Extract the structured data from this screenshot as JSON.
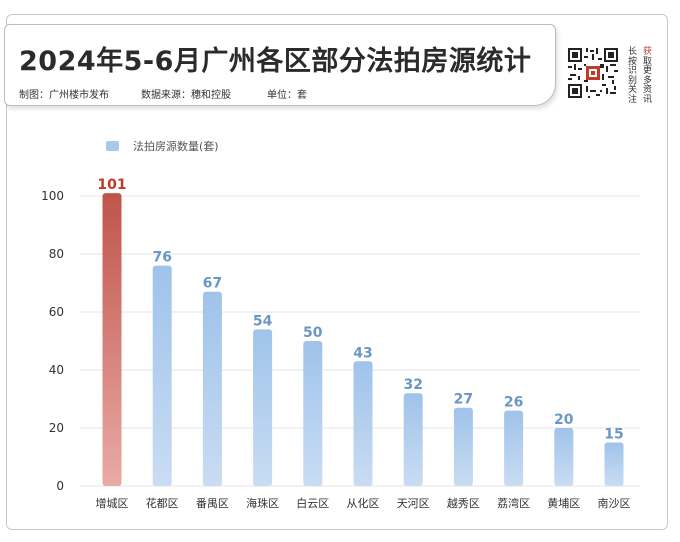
{
  "header": {
    "title": "2024年5-6月广州各区部分法拍房源统计",
    "producer": "制图：广州楼市发布",
    "source": "数据来源：穗和控股",
    "unit": "单位：套"
  },
  "qr": {
    "side_text": [
      "长",
      "按",
      "识",
      "别",
      "关",
      "注",
      "获",
      "取",
      "更",
      "多",
      "资",
      "讯"
    ]
  },
  "colors": {
    "highlight": "#c0544b",
    "bar": "#a9c9ec",
    "value_label": "#6a98c6",
    "highlight_label": "#c0392b"
  },
  "chart_data": {
    "type": "bar",
    "categories": [
      "增城区",
      "花都区",
      "番禺区",
      "海珠区",
      "白云区",
      "从化区",
      "天河区",
      "越秀区",
      "荔湾区",
      "黄埔区",
      "南沙区"
    ],
    "series": [
      {
        "name": "法拍房源数量(套)",
        "values": [
          101,
          76,
          67,
          54,
          50,
          43,
          32,
          27,
          26,
          20,
          15
        ]
      }
    ],
    "highlight_index": 0,
    "yticks": [
      0,
      20,
      40,
      60,
      80,
      100
    ],
    "ylim": [
      0,
      100
    ],
    "grid": true,
    "legend": "top-left"
  }
}
